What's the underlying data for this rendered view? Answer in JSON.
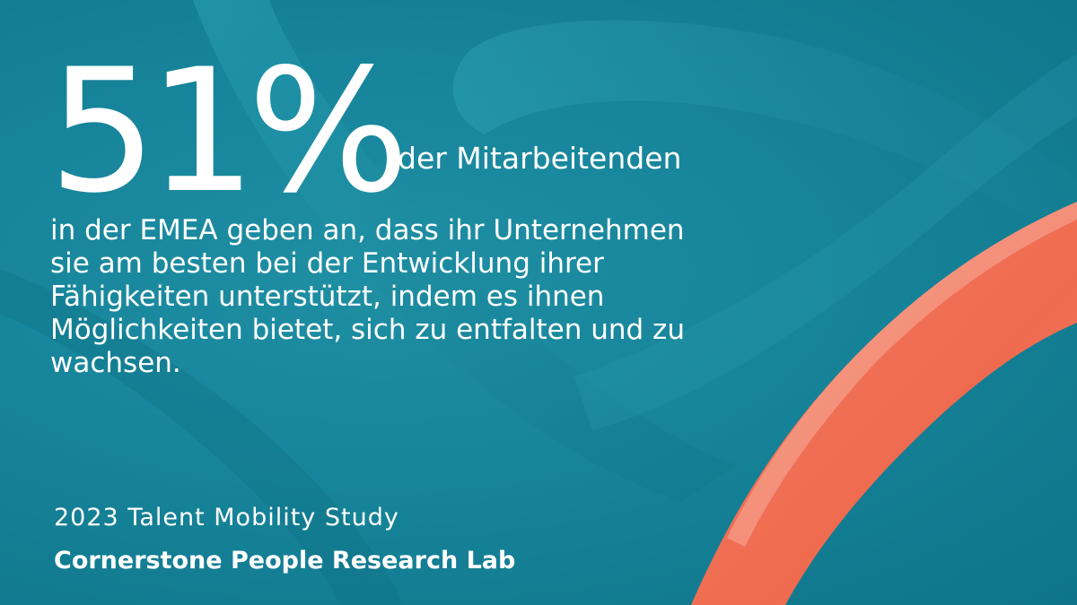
{
  "headline": {
    "number": "51%",
    "lead": "der Mitarbeitenden"
  },
  "body_lines": [
    "in der EMEA geben an, dass ihr Unternehmen",
    "sie am besten bei der Entwicklung ihrer",
    "Fähigkeiten unterstützt, indem es ihnen",
    "Möglichkeiten bietet, sich zu entfalten und zu",
    "wachsen."
  ],
  "source": {
    "study": "2023 Talent Mobility Study",
    "lab": "Cornerstone People Research Lab"
  },
  "colors": {
    "background": "#16849a",
    "accent_ribbon": "#f26a4f",
    "text": "#ffffff"
  },
  "decorations": [
    "teal-ribbon-shapes",
    "coral-ribbon-shape"
  ]
}
